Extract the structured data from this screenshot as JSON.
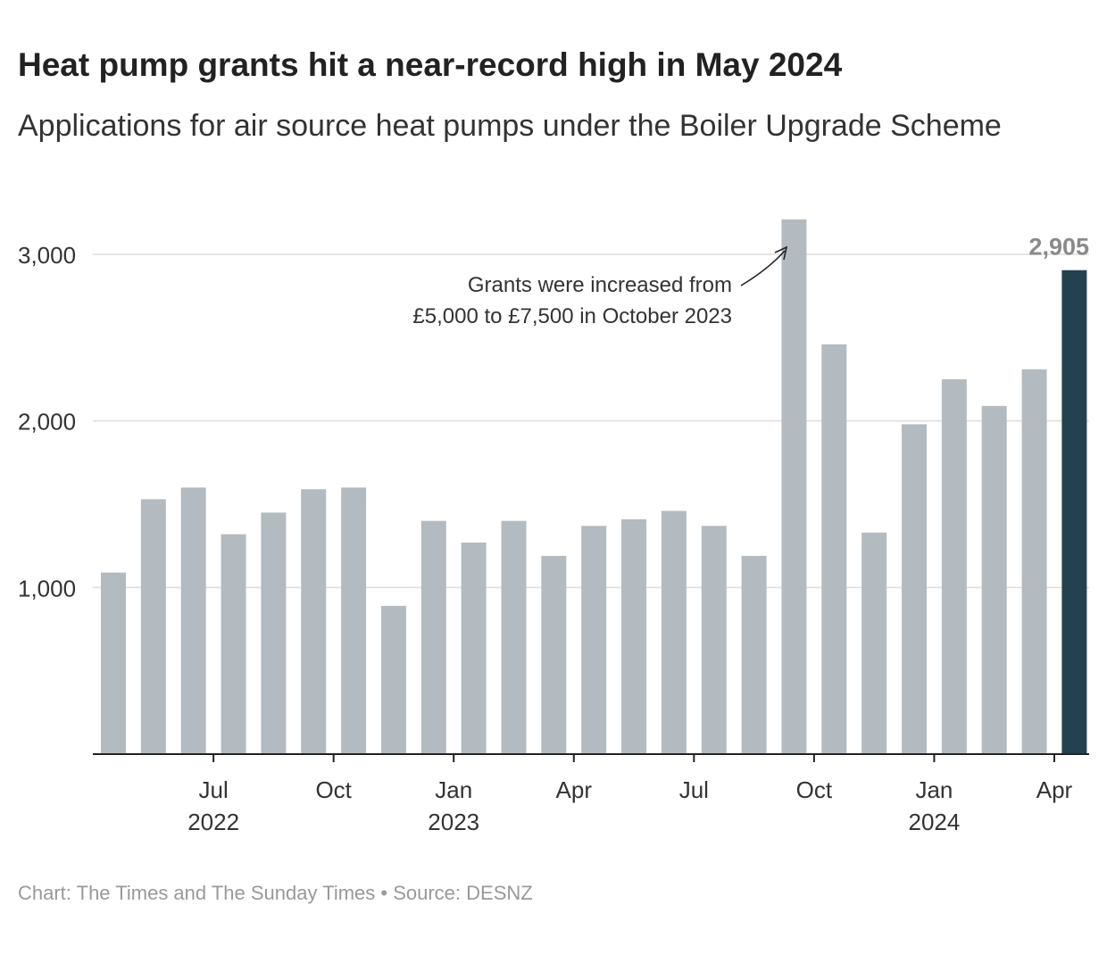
{
  "header": {
    "title": "Heat pump grants hit a near-record high in May 2024",
    "subtitle": "Applications for air source heat pumps under the Boiler Upgrade Scheme"
  },
  "footer": {
    "credit": "Chart: The Times and The Sunday Times • Source: DESNZ"
  },
  "chart_data": {
    "type": "bar",
    "categories": [
      "May 2022",
      "Jun 2022",
      "Jul 2022",
      "Aug 2022",
      "Sep 2022",
      "Oct 2022",
      "Nov 2022",
      "Dec 2022",
      "Jan 2023",
      "Feb 2023",
      "Mar 2023",
      "Apr 2023",
      "May 2023",
      "Jun 2023",
      "Jul 2023",
      "Aug 2023",
      "Sep 2023",
      "Oct 2023",
      "Nov 2023",
      "Dec 2023",
      "Jan 2024",
      "Feb 2024",
      "Mar 2024",
      "Apr 2024",
      "May 2024"
    ],
    "values": [
      1090,
      1530,
      1600,
      1320,
      1450,
      1590,
      1600,
      890,
      1400,
      1270,
      1400,
      1190,
      1370,
      1410,
      1460,
      1370,
      1190,
      3210,
      2460,
      1330,
      1980,
      2250,
      2090,
      2310,
      2905
    ],
    "ylim": [
      0,
      3300
    ],
    "yticks": [
      {
        "value": 1000,
        "label": "1,000"
      },
      {
        "value": 2000,
        "label": "2,000"
      },
      {
        "value": 3000,
        "label": "3,000"
      }
    ],
    "xticks": [
      {
        "index": 2,
        "label": "Jul",
        "year": "2022"
      },
      {
        "index": 5,
        "label": "Oct",
        "year": ""
      },
      {
        "index": 8,
        "label": "Jan",
        "year": "2023"
      },
      {
        "index": 11,
        "label": "Apr",
        "year": ""
      },
      {
        "index": 14,
        "label": "Jul",
        "year": ""
      },
      {
        "index": 17,
        "label": "Oct",
        "year": ""
      },
      {
        "index": 20,
        "label": "Jan",
        "year": "2024"
      },
      {
        "index": 23,
        "label": "Apr",
        "year": ""
      }
    ],
    "highlight_index": 24,
    "highlight_label": "2,905",
    "annotation": {
      "lines": [
        "Grants were increased from",
        "£5,000 to £7,500 in October 2023"
      ],
      "target_index": 17
    },
    "grid": true,
    "colors": {
      "bar": "#b4bbc0",
      "highlight": "#244150",
      "grid": "#dddddd",
      "axis": "#222222",
      "highlight_label": "#8a8a8a"
    }
  }
}
